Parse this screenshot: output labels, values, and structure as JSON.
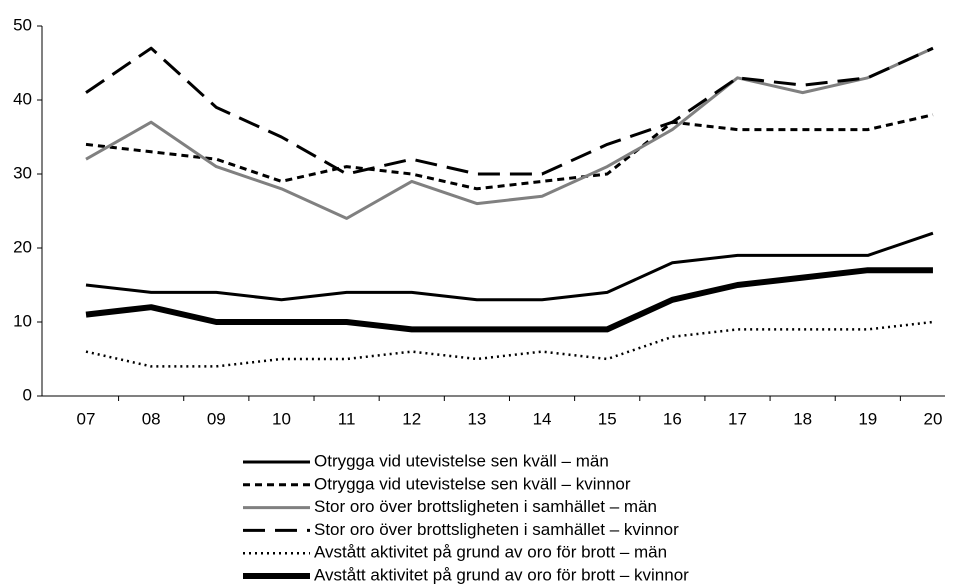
{
  "chart_data": {
    "type": "line",
    "categories": [
      "07",
      "08",
      "09",
      "10",
      "11",
      "12",
      "13",
      "14",
      "15",
      "16",
      "17",
      "18",
      "19",
      "20"
    ],
    "ylim": [
      0,
      50
    ],
    "yticks": [
      0,
      10,
      20,
      30,
      40,
      50
    ],
    "grid": false,
    "series": [
      {
        "name": "Otrygga vid utevistelse sen kväll – män",
        "color": "#000000",
        "width": 3,
        "dash": "none",
        "values": [
          15,
          14,
          14,
          13,
          14,
          14,
          13,
          13,
          14,
          18,
          19,
          19,
          19,
          22
        ]
      },
      {
        "name": "Otrygga vid utevistelse sen kväll – kvinnor",
        "color": "#000000",
        "width": 3,
        "dash": "7 5",
        "values": [
          34,
          33,
          32,
          29,
          31,
          30,
          28,
          29,
          30,
          37,
          36,
          36,
          36,
          38
        ]
      },
      {
        "name": "Stor oro över brottsligheten i samhället – män",
        "color": "#808080",
        "width": 3,
        "dash": "none",
        "values": [
          32,
          37,
          31,
          28,
          24,
          29,
          26,
          27,
          31,
          36,
          43,
          41,
          43,
          47
        ]
      },
      {
        "name": "Stor oro över brottsligheten i samhället – kvinnor",
        "color": "#000000",
        "width": 3,
        "dash": "22 10",
        "values": [
          41,
          47,
          39,
          35,
          30,
          32,
          30,
          30,
          34,
          37,
          43,
          42,
          43,
          47
        ]
      },
      {
        "name": "Avstått aktivitet på grund av oro för brott – män",
        "color": "#000000",
        "width": 2.5,
        "dash": "2 4",
        "values": [
          6,
          4,
          4,
          5,
          5,
          6,
          5,
          6,
          5,
          8,
          9,
          9,
          9,
          10
        ]
      },
      {
        "name": "Avstått aktivitet på grund av oro för brott – kvinnor",
        "color": "#000000",
        "width": 6,
        "dash": "none",
        "values": [
          11,
          12,
          10,
          10,
          10,
          9,
          9,
          9,
          9,
          13,
          15,
          16,
          17,
          17
        ]
      }
    ]
  }
}
